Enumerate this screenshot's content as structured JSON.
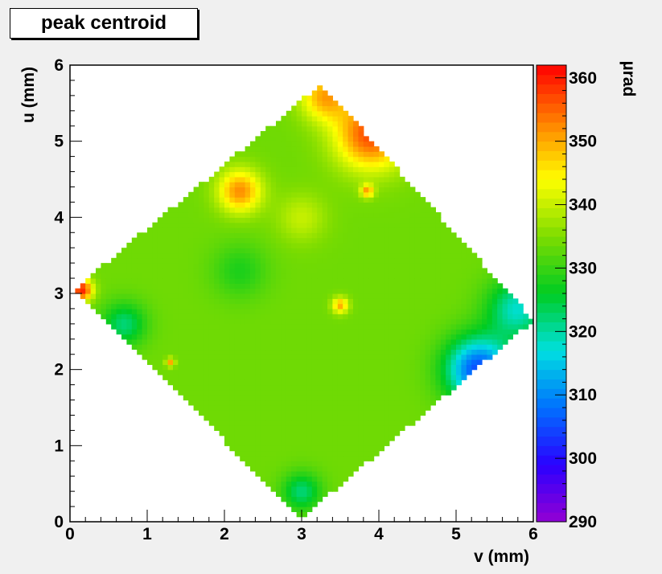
{
  "chart_data": {
    "type": "heatmap",
    "title": "peak centroid",
    "xlabel": "v (mm)",
    "ylabel": "u (mm)",
    "xlim": [
      0,
      6
    ],
    "ylim": [
      0,
      6
    ],
    "xticks": [
      0,
      1,
      2,
      3,
      4,
      5,
      6
    ],
    "yticks": [
      0,
      1,
      2,
      3,
      4,
      5,
      6
    ],
    "colorbar": {
      "label": "µrad",
      "range": [
        290,
        362
      ],
      "ticks": [
        290,
        300,
        310,
        320,
        330,
        340,
        350,
        360
      ],
      "palette": [
        "#9400d3",
        "#2a00ff",
        "#0070ff",
        "#00e0e0",
        "#00cc22",
        "#7ddc00",
        "#ffff00",
        "#ff8000",
        "#ff0000"
      ]
    },
    "region_corners": [
      {
        "v": 3.0,
        "u": 0.05
      },
      {
        "v": 6.0,
        "u": 2.65
      },
      {
        "v": 3.25,
        "u": 5.75
      },
      {
        "v": 0.05,
        "u": 3.05
      }
    ],
    "background_value": 334,
    "features": [
      {
        "v": 3.9,
        "u": 5.1,
        "value": 357,
        "extent": 0.65
      },
      {
        "v": 3.3,
        "u": 5.6,
        "value": 350,
        "extent": 0.45
      },
      {
        "v": 2.2,
        "u": 4.35,
        "value": 352,
        "extent": 0.4
      },
      {
        "v": 5.8,
        "u": 2.8,
        "value": 318,
        "extent": 0.55
      },
      {
        "v": 5.3,
        "u": 2.0,
        "value": 305,
        "extent": 0.6
      },
      {
        "v": 3.0,
        "u": 0.4,
        "value": 322,
        "extent": 0.35
      },
      {
        "v": 0.7,
        "u": 2.6,
        "value": 322,
        "extent": 0.4
      },
      {
        "v": 0.15,
        "u": 3.05,
        "value": 360,
        "extent": 0.2
      },
      {
        "v": 3.5,
        "u": 2.85,
        "value": 350,
        "extent": 0.15
      },
      {
        "v": 2.2,
        "u": 3.3,
        "value": 328,
        "extent": 0.5
      },
      {
        "v": 3.0,
        "u": 4.0,
        "value": 340,
        "extent": 0.45
      },
      {
        "v": 3.85,
        "u": 4.35,
        "value": 350,
        "extent": 0.12
      },
      {
        "v": 1.3,
        "u": 2.1,
        "value": 350,
        "extent": 0.08
      }
    ]
  }
}
